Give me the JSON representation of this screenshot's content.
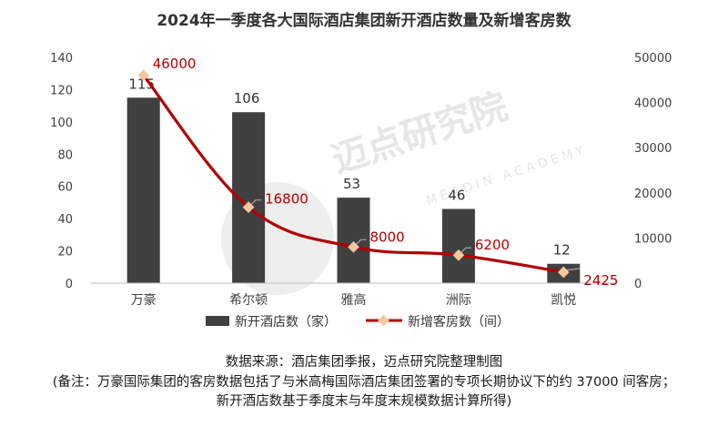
{
  "chart_data": {
    "type": "bar+line",
    "title": "2024年一季度各大国际酒店集团新开酒店数量及新增客房数",
    "categories": [
      "万豪",
      "希尔顿",
      "雅高",
      "洲际",
      "凯悦"
    ],
    "series": [
      {
        "name": "新开酒店数（家）",
        "type": "bar",
        "axis": "left",
        "values": [
          115,
          106,
          53,
          46,
          12
        ],
        "color": "#404040"
      },
      {
        "name": "新增客房数（间）",
        "type": "line",
        "axis": "right",
        "values": [
          46000,
          16800,
          8000,
          6200,
          2425
        ],
        "color": "#b30000",
        "marker_color": "#f4c7a1"
      }
    ],
    "y_left": {
      "lim": [
        0,
        140
      ],
      "ticks": [
        "0",
        "20",
        "40",
        "60",
        "80",
        "100",
        "120",
        "140"
      ]
    },
    "y_right": {
      "lim": [
        0,
        50000
      ],
      "ticks": [
        "0",
        "10000",
        "20000",
        "30000",
        "40000",
        "50000"
      ]
    },
    "bar_labels": [
      "115",
      "106",
      "53",
      "46",
      "12"
    ],
    "line_labels": [
      "46000",
      "16800",
      "8000",
      "6200",
      "2425"
    ],
    "legend": [
      "新开酒店数（家）",
      "新增客房数（间）"
    ],
    "legend_position": "bottom",
    "grid": false
  },
  "watermark": {
    "text": "迈点研究院",
    "sub": "MEADIN ACADEMY"
  },
  "notes": {
    "source": "数据来源：酒店集团季报，迈点研究院整理制图",
    "note1": "(备注：万豪国际集团的客房数据包括了与米高梅国际酒店集团签署的专项长期协议下的约 37000 间客房；",
    "note2": "新开酒店数基于季度末与年度末规模数据计算所得)"
  }
}
